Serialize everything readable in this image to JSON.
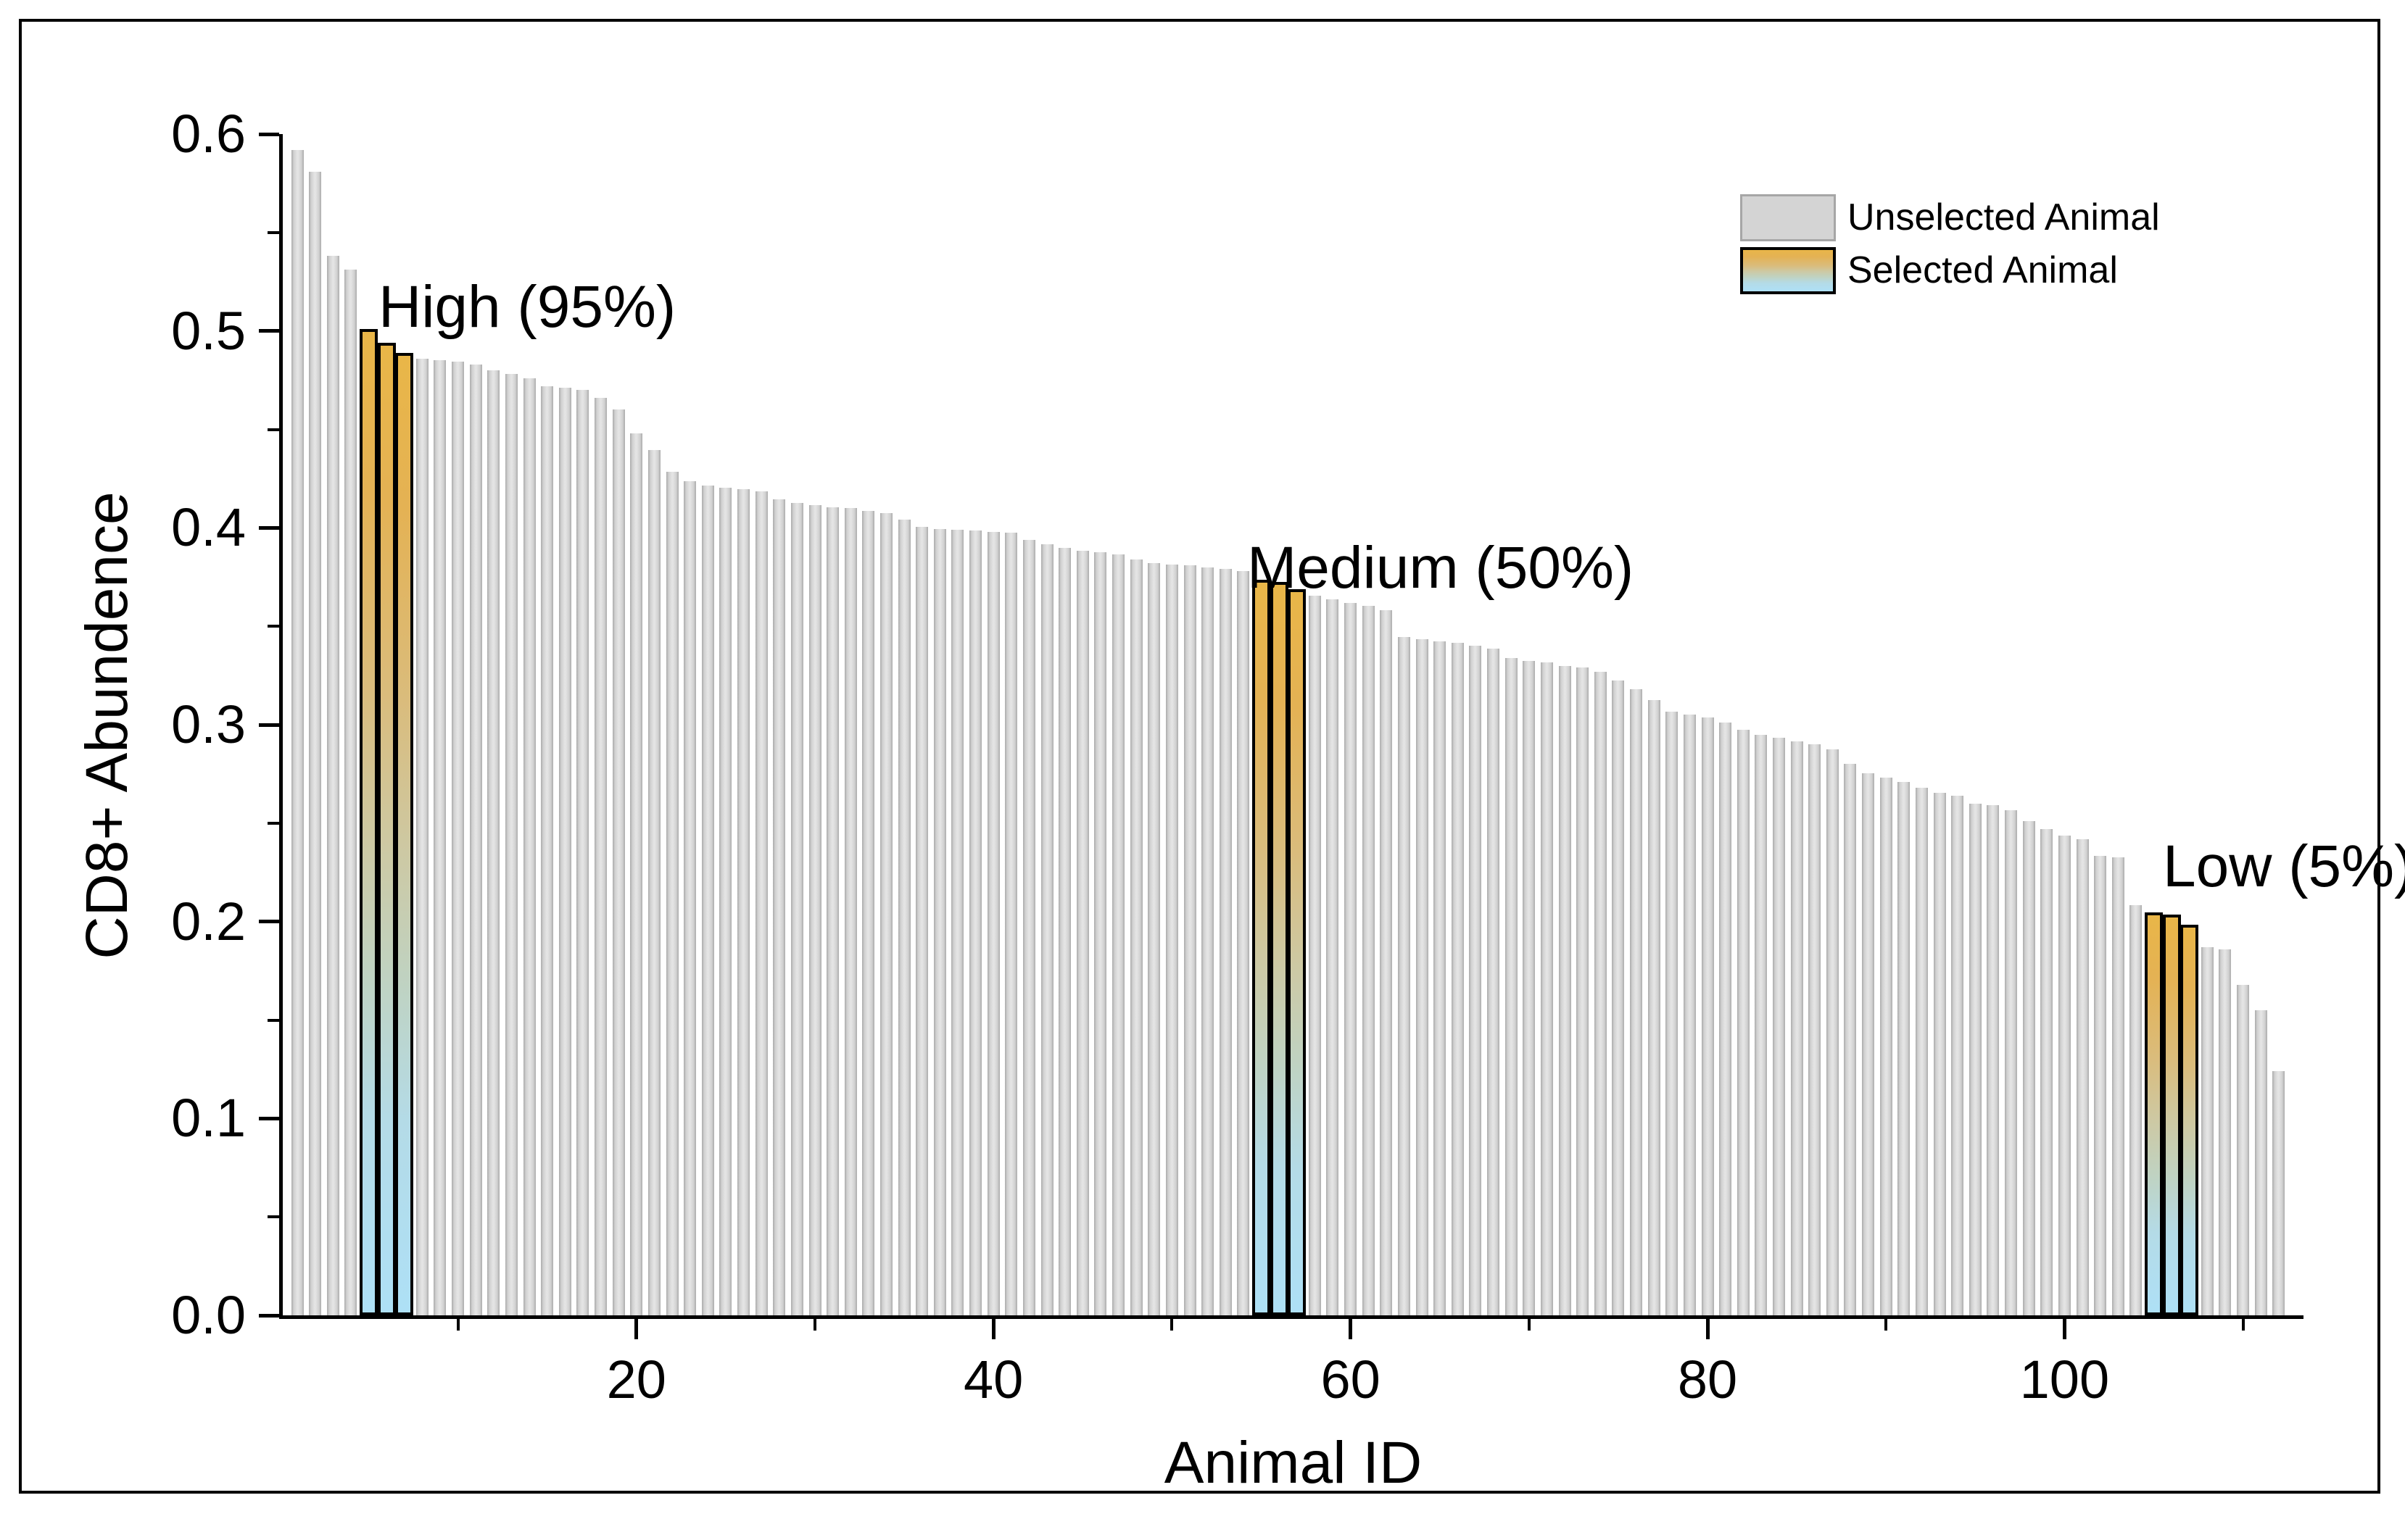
{
  "chart_data": {
    "type": "bar",
    "title": "",
    "xlabel": "Animal ID",
    "ylabel": "CD8+ Abundence",
    "xlim": [
      0,
      113
    ],
    "ylim": [
      0.0,
      0.6
    ],
    "x_major_ticks": [
      20,
      40,
      60,
      80,
      100
    ],
    "x_minor_ticks": [
      10,
      30,
      50,
      70,
      90,
      110
    ],
    "y_major_ticks": [
      0.0,
      0.1,
      0.2,
      0.3,
      0.4,
      0.5,
      0.6
    ],
    "y_minor_ticks": [
      0.05,
      0.15,
      0.25,
      0.35,
      0.45,
      0.55
    ],
    "grid": false,
    "legend_position": "top-right",
    "x": "Animal ID rank 1..112",
    "values": [
      0.592,
      0.581,
      0.538,
      0.531,
      0.501,
      0.494,
      0.489,
      0.486,
      0.485,
      0.4845,
      0.483,
      0.48,
      0.478,
      0.476,
      0.472,
      0.471,
      0.47,
      0.466,
      0.46,
      0.448,
      0.4395,
      0.4285,
      0.4235,
      0.4215,
      0.4205,
      0.4195,
      0.4185,
      0.4145,
      0.4125,
      0.4115,
      0.4105,
      0.41,
      0.4085,
      0.4075,
      0.404,
      0.4005,
      0.3995,
      0.399,
      0.3985,
      0.398,
      0.3975,
      0.394,
      0.3915,
      0.39,
      0.3885,
      0.3875,
      0.3865,
      0.384,
      0.382,
      0.3815,
      0.381,
      0.38,
      0.379,
      0.378,
      0.3735,
      0.3725,
      0.369,
      0.3655,
      0.3635,
      0.362,
      0.3605,
      0.358,
      0.3445,
      0.3435,
      0.3425,
      0.3415,
      0.34,
      0.3385,
      0.334,
      0.3325,
      0.3315,
      0.33,
      0.329,
      0.327,
      0.3225,
      0.318,
      0.3125,
      0.3065,
      0.305,
      0.3035,
      0.301,
      0.2975,
      0.295,
      0.2935,
      0.2915,
      0.29,
      0.2875,
      0.28,
      0.2755,
      0.273,
      0.271,
      0.268,
      0.2655,
      0.264,
      0.26,
      0.259,
      0.2565,
      0.251,
      0.247,
      0.2435,
      0.242,
      0.2335,
      0.2325,
      0.2085,
      0.2045,
      0.2035,
      0.1985,
      0.187,
      0.186,
      0.168,
      0.155,
      0.124
    ],
    "selected_ids": [
      5,
      6,
      7,
      55,
      56,
      57,
      105,
      106,
      107
    ],
    "annotations": [
      {
        "id": "high",
        "text": "High (95%)"
      },
      {
        "id": "medium",
        "text": "Medium (50%)"
      },
      {
        "id": "low",
        "text": "Low (5%)"
      }
    ],
    "legend": [
      {
        "id": "unselected",
        "label": "Unselected Animal"
      },
      {
        "id": "selected",
        "label": "Selected Animal"
      }
    ],
    "colors": {
      "unselected_fill": "#d2d2d2",
      "unselected_edge": "#ababab",
      "selected_gradient_top": "#e9b648",
      "selected_gradient_bottom": "#aee0f6",
      "selected_border": "#000000",
      "axis": "#000000"
    }
  }
}
